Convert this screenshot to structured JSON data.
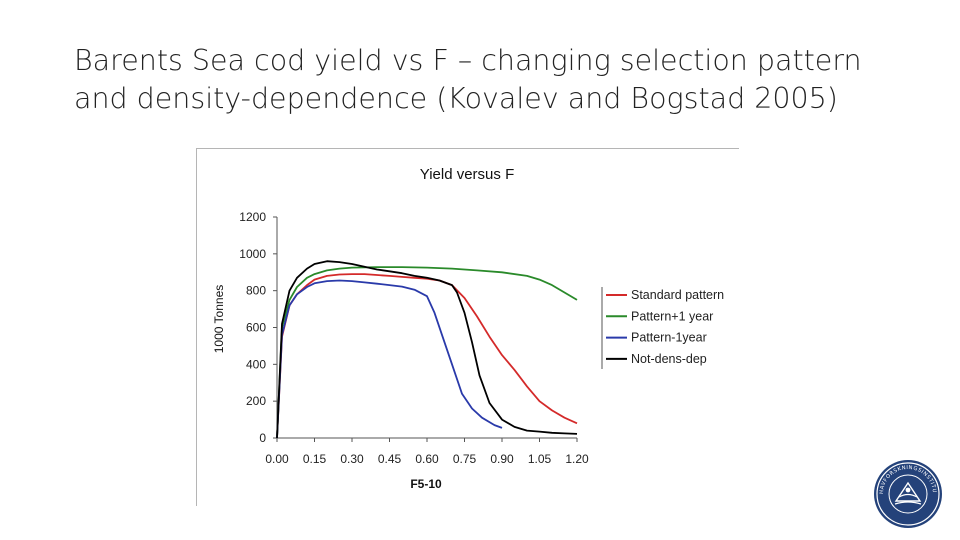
{
  "slide": {
    "title_line1": "Barents Sea cod yield vs F – changing selection pattern",
    "title_line2": "and density-dependence (Kovalev and Bogstad 2005)"
  },
  "logo": {
    "icon": "institute-seal-icon",
    "text": "HAVFORSKNINGSINSTITUTTET",
    "colors": {
      "background": "#24427a",
      "foreground": "#ffffff"
    }
  },
  "chart_data": {
    "type": "line",
    "title": "Yield versus F",
    "xlabel": "F5-10",
    "ylabel": "1000 Tonnes",
    "xlim": [
      0,
      1.2
    ],
    "ylim": [
      0,
      1200
    ],
    "x_ticks": [
      "0.00",
      "0.15",
      "0.30",
      "0.45",
      "0.60",
      "0.75",
      "0.90",
      "1.05",
      "1.20"
    ],
    "y_ticks": [
      "0",
      "200",
      "400",
      "600",
      "800",
      "1000",
      "1200"
    ],
    "grid": false,
    "legend_position": "right",
    "series": [
      {
        "name": "Standard pattern",
        "color": "#d42a2a",
        "x": [
          0,
          0.02,
          0.05,
          0.08,
          0.12,
          0.15,
          0.2,
          0.25,
          0.3,
          0.35,
          0.4,
          0.45,
          0.5,
          0.55,
          0.6,
          0.65,
          0.7,
          0.75,
          0.8,
          0.85,
          0.9,
          0.95,
          1.0,
          1.05,
          1.1,
          1.15,
          1.2
        ],
        "values": [
          0,
          550,
          720,
          780,
          830,
          860,
          880,
          888,
          890,
          890,
          885,
          880,
          875,
          870,
          865,
          855,
          830,
          760,
          660,
          550,
          450,
          370,
          280,
          200,
          150,
          110,
          80
        ]
      },
      {
        "name": "Pattern+1 year",
        "color": "#2a8a2a",
        "x": [
          0,
          0.02,
          0.05,
          0.08,
          0.12,
          0.15,
          0.2,
          0.25,
          0.3,
          0.4,
          0.5,
          0.6,
          0.7,
          0.8,
          0.9,
          1.0,
          1.05,
          1.1,
          1.15,
          1.2
        ],
        "values": [
          0,
          600,
          750,
          820,
          870,
          890,
          910,
          920,
          925,
          928,
          928,
          925,
          920,
          910,
          900,
          880,
          860,
          830,
          790,
          750
        ]
      },
      {
        "name": "Pattern-1year",
        "color": "#2a3aaa",
        "x": [
          0,
          0.02,
          0.05,
          0.08,
          0.12,
          0.15,
          0.2,
          0.25,
          0.3,
          0.35,
          0.4,
          0.45,
          0.5,
          0.55,
          0.6,
          0.63,
          0.66,
          0.7,
          0.74,
          0.78,
          0.82,
          0.87,
          0.9
        ],
        "values": [
          0,
          560,
          720,
          780,
          820,
          840,
          852,
          855,
          852,
          845,
          838,
          830,
          822,
          805,
          770,
          680,
          560,
          400,
          240,
          160,
          110,
          70,
          55
        ]
      },
      {
        "name": "Not-dens-dep",
        "color": "#000000",
        "x": [
          0,
          0.02,
          0.05,
          0.08,
          0.12,
          0.15,
          0.2,
          0.25,
          0.3,
          0.35,
          0.4,
          0.45,
          0.5,
          0.55,
          0.6,
          0.65,
          0.7,
          0.72,
          0.75,
          0.78,
          0.81,
          0.85,
          0.9,
          0.95,
          1.0,
          1.05,
          1.1,
          1.15,
          1.2
        ],
        "values": [
          0,
          620,
          800,
          870,
          920,
          945,
          960,
          955,
          945,
          930,
          915,
          905,
          895,
          880,
          870,
          855,
          830,
          790,
          680,
          520,
          340,
          190,
          100,
          60,
          40,
          35,
          28,
          25,
          22
        ]
      }
    ]
  }
}
